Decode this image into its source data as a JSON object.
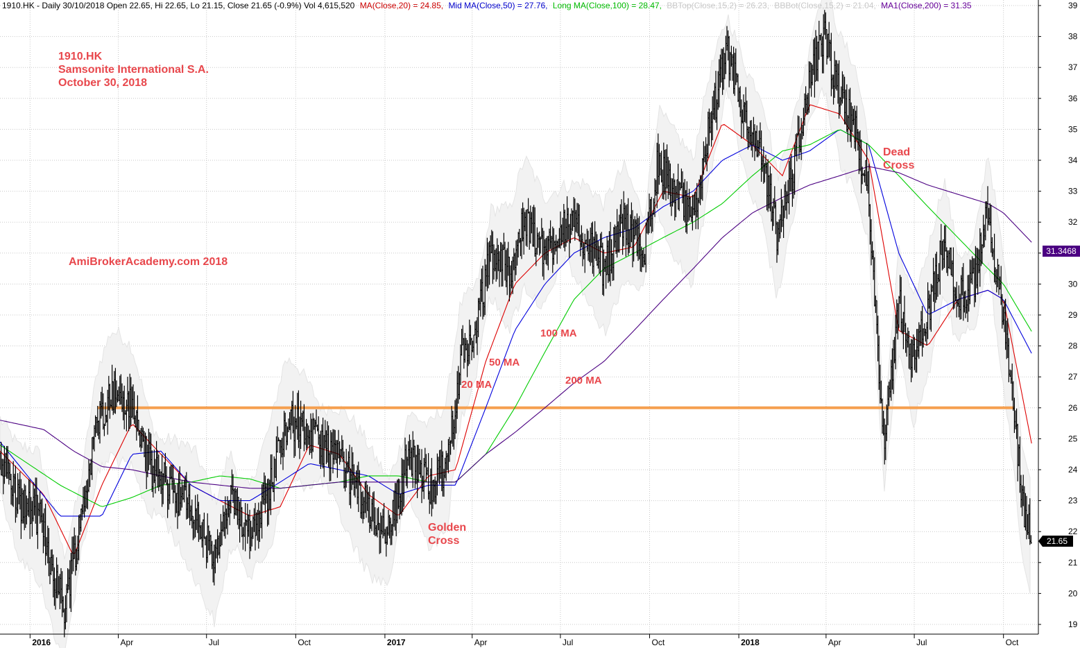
{
  "header": {
    "symbol_info": "1910.HK - Daily 30/10/2018 Open 22.65, Hi 22.65, Lo 21.15, Close 21.65 (-0.9%) Vol 4,615,520",
    "indicators": [
      {
        "text": "MA(Close,20) = 24.85,",
        "color": "#cc0000"
      },
      {
        "text": "Mid MA(Close,50) = 27.76,",
        "color": "#0000cc"
      },
      {
        "text": "Long MA(Close,100) = 28.47,",
        "color": "#00bb00"
      },
      {
        "text": "BBTop(Close,15,2) = 26.23,",
        "color": "#c8c8c8"
      },
      {
        "text": "BBBot(Close,15,2) = 21.04,",
        "color": "#c8c8c8"
      },
      {
        "text": "MA1(Close,200) = 31.35",
        "color": "#660099"
      }
    ]
  },
  "annotations": {
    "ticker": "1910.HK",
    "company": "Samsonite International S.A.",
    "date": "October 30, 2018",
    "watermark": "AmiBrokerAcademy.com  2018",
    "ma20": "20 MA",
    "ma50": "50 MA",
    "ma100": "100 MA",
    "ma200": "200 MA",
    "golden_1": "Golden",
    "golden_2": "Cross",
    "dead_1": "Dead",
    "dead_2": "Cross"
  },
  "badges": {
    "ma200_value": "31.3468",
    "close_value": "21.65"
  },
  "colors": {
    "annotation": "#e8474c",
    "ma20": "#dd0000",
    "ma50": "#0000dd",
    "ma100": "#00cc00",
    "ma200": "#4b0082",
    "bollinger": "#e4e4e4",
    "support": "#f5a050",
    "grid": "#c8c8c8"
  },
  "chart_data": {
    "type": "line",
    "y_axis": {
      "min": 19,
      "max": 39,
      "ticks": [
        19,
        20,
        21,
        22,
        23,
        24,
        25,
        26,
        27,
        28,
        29,
        30,
        31,
        32,
        33,
        34,
        35,
        36,
        37,
        38,
        39
      ],
      "position": "right"
    },
    "x_axis": {
      "ticks": [
        "2016",
        "Apr",
        "Jul",
        "Oct",
        "2017",
        "Apr",
        "Jul",
        "Oct",
        "2018",
        "Apr",
        "Jul",
        "Oct"
      ],
      "bold_ticks": [
        "2016",
        "2017",
        "2018"
      ]
    },
    "grid": true,
    "support_level": 26,
    "series": [
      {
        "name": "Close",
        "x": [
          "2015-12-01",
          "2015-12-20",
          "2016-01-10",
          "2016-02-05",
          "2016-02-20",
          "2016-03-10",
          "2016-03-25",
          "2016-04-15",
          "2016-05-05",
          "2016-05-25",
          "2016-06-20",
          "2016-07-10",
          "2016-07-25",
          "2016-08-15",
          "2016-09-05",
          "2016-09-20",
          "2016-10-01",
          "2016-10-20",
          "2016-11-10",
          "2016-12-01",
          "2016-12-20",
          "2017-01-05",
          "2017-01-25",
          "2017-02-15",
          "2017-03-05",
          "2017-03-20",
          "2017-04-05",
          "2017-04-20",
          "2017-05-10",
          "2017-05-25",
          "2017-06-15",
          "2017-07-05",
          "2017-07-25",
          "2017-08-15",
          "2017-09-05",
          "2017-09-25",
          "2017-10-10",
          "2017-10-25",
          "2017-11-15",
          "2017-12-01",
          "2017-12-20",
          "2018-01-10",
          "2018-01-25",
          "2018-02-10",
          "2018-02-28",
          "2018-03-15",
          "2018-03-30",
          "2018-04-15",
          "2018-05-01",
          "2018-05-15",
          "2018-05-31",
          "2018-06-15",
          "2018-06-30",
          "2018-07-15",
          "2018-08-01",
          "2018-08-15",
          "2018-09-01",
          "2018-09-15",
          "2018-09-30",
          "2018-10-10",
          "2018-10-20",
          "2018-10-30"
        ],
        "y": [
          24.5,
          23.0,
          22.5,
          19.5,
          22.0,
          25.5,
          26.5,
          26.0,
          24.0,
          23.5,
          22.5,
          21.0,
          23.0,
          22.0,
          23.5,
          25.5,
          25.5,
          25.0,
          24.5,
          23.5,
          22.5,
          22.0,
          24.5,
          23.5,
          24.0,
          27.5,
          28.5,
          31.0,
          30.5,
          32.0,
          31.0,
          32.0,
          31.5,
          30.5,
          32.0,
          31.0,
          34.0,
          33.0,
          32.0,
          35.0,
          37.5,
          35.0,
          34.0,
          31.5,
          34.0,
          36.5,
          38.0,
          36.0,
          35.0,
          33.0,
          24.5,
          29.5,
          27.5,
          29.0,
          31.5,
          29.5,
          30.0,
          32.5,
          29.0,
          26.5,
          23.0,
          21.65
        ]
      },
      {
        "name": "MA(Close,20)",
        "x": [
          "2015-12-01",
          "2016-01-15",
          "2016-02-15",
          "2016-03-15",
          "2016-04-15",
          "2016-05-15",
          "2016-06-15",
          "2016-07-15",
          "2016-08-15",
          "2016-09-15",
          "2016-10-15",
          "2016-11-15",
          "2016-12-15",
          "2017-01-15",
          "2017-02-15",
          "2017-03-15",
          "2017-04-15",
          "2017-05-15",
          "2017-06-15",
          "2017-07-15",
          "2017-08-15",
          "2017-09-15",
          "2017-10-15",
          "2017-11-15",
          "2017-12-15",
          "2018-01-15",
          "2018-02-15",
          "2018-03-15",
          "2018-04-15",
          "2018-05-15",
          "2018-06-15",
          "2018-07-15",
          "2018-08-15",
          "2018-09-15",
          "2018-10-01",
          "2018-10-30"
        ],
        "y": [
          24.6,
          23.2,
          21.2,
          23.5,
          25.5,
          24.5,
          23.5,
          23.0,
          22.5,
          22.8,
          24.8,
          24.5,
          23.2,
          22.5,
          23.8,
          24.0,
          27.5,
          30.0,
          31.0,
          31.5,
          31.0,
          31.2,
          33.0,
          32.8,
          35.2,
          34.5,
          33.5,
          35.8,
          35.5,
          34.0,
          28.5,
          28.0,
          29.5,
          29.8,
          29.5,
          24.85
        ]
      },
      {
        "name": "Mid MA(Close,50)",
        "x": [
          "2015-12-01",
          "2016-02-01",
          "2016-03-15",
          "2016-04-15",
          "2016-05-15",
          "2016-06-15",
          "2016-07-15",
          "2016-08-15",
          "2016-09-15",
          "2016-10-15",
          "2016-11-15",
          "2016-12-15",
          "2017-01-15",
          "2017-02-15",
          "2017-03-15",
          "2017-04-15",
          "2017-05-15",
          "2017-06-15",
          "2017-07-15",
          "2017-08-15",
          "2017-09-15",
          "2017-10-15",
          "2017-11-15",
          "2017-12-15",
          "2018-01-15",
          "2018-02-15",
          "2018-03-15",
          "2018-04-15",
          "2018-05-15",
          "2018-06-15",
          "2018-07-15",
          "2018-08-15",
          "2018-09-15",
          "2018-10-01",
          "2018-10-30"
        ],
        "y": [
          24.9,
          22.5,
          22.5,
          24.5,
          24.6,
          23.5,
          23.0,
          23.0,
          23.6,
          24.2,
          24.0,
          23.8,
          23.2,
          23.5,
          23.5,
          26.0,
          28.5,
          30.0,
          31.0,
          31.5,
          31.8,
          32.5,
          33.0,
          34.0,
          34.5,
          34.0,
          34.3,
          35.0,
          34.5,
          31.0,
          29.0,
          29.5,
          29.8,
          29.5,
          27.76
        ]
      },
      {
        "name": "Long MA(Close,100)",
        "x": [
          "2015-12-01",
          "2016-02-01",
          "2016-03-15",
          "2016-04-15",
          "2016-05-15",
          "2016-06-15",
          "2016-07-15",
          "2016-08-15",
          "2016-09-15",
          "2016-10-15",
          "2016-11-15",
          "2016-12-15",
          "2017-01-15",
          "2017-02-15",
          "2017-03-15",
          "2017-04-15",
          "2017-05-15",
          "2017-06-15",
          "2017-07-15",
          "2017-08-15",
          "2017-09-15",
          "2017-10-15",
          "2017-11-15",
          "2017-12-15",
          "2018-01-15",
          "2018-02-15",
          "2018-03-15",
          "2018-04-15",
          "2018-05-15",
          "2018-06-15",
          "2018-07-15",
          "2018-08-15",
          "2018-09-15",
          "2018-10-01",
          "2018-10-30"
        ],
        "y": [
          24.8,
          23.5,
          22.8,
          23.1,
          23.5,
          23.6,
          23.8,
          23.7,
          23.4,
          23.5,
          23.6,
          23.8,
          23.8,
          23.6,
          23.6,
          24.5,
          26.0,
          27.8,
          29.5,
          30.5,
          31.0,
          31.5,
          32.0,
          32.6,
          33.5,
          34.3,
          34.5,
          35.0,
          34.5,
          33.5,
          32.5,
          31.5,
          30.5,
          30.0,
          28.47
        ]
      },
      {
        "name": "MA1(Close,200)",
        "x": [
          "2015-12-01",
          "2016-01-15",
          "2016-02-15",
          "2016-03-15",
          "2016-04-15",
          "2016-05-15",
          "2016-06-15",
          "2016-07-15",
          "2016-08-15",
          "2016-09-15",
          "2016-10-15",
          "2016-11-15",
          "2016-12-15",
          "2017-01-15",
          "2017-02-15",
          "2017-03-15",
          "2017-04-15",
          "2017-05-15",
          "2017-06-15",
          "2017-07-15",
          "2017-08-15",
          "2017-09-15",
          "2017-10-15",
          "2017-11-15",
          "2017-12-15",
          "2018-01-15",
          "2018-02-15",
          "2018-03-15",
          "2018-04-15",
          "2018-05-15",
          "2018-06-15",
          "2018-07-15",
          "2018-08-15",
          "2018-09-15",
          "2018-10-01",
          "2018-10-30"
        ],
        "y": [
          25.6,
          25.3,
          24.6,
          24.1,
          24.0,
          23.8,
          23.6,
          23.5,
          23.4,
          23.4,
          23.5,
          23.6,
          23.6,
          23.6,
          23.6,
          23.6,
          24.5,
          25.2,
          26.0,
          26.8,
          27.5,
          28.5,
          29.5,
          30.5,
          31.5,
          32.3,
          32.8,
          33.2,
          33.5,
          33.8,
          33.6,
          33.2,
          32.9,
          32.6,
          32.3,
          31.35
        ]
      }
    ]
  }
}
